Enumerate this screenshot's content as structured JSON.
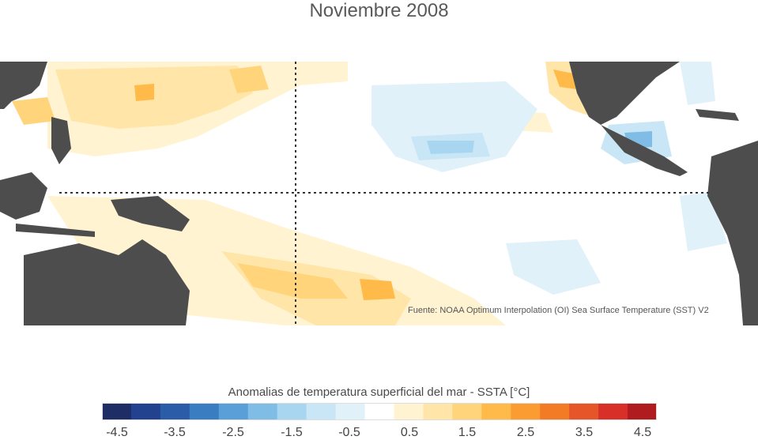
{
  "title": "Noviembre 2008",
  "source": "Fuente: NOAA Optimum Interpolation (OI) Sea Surface Temperature (SST) V2",
  "colorbar": {
    "label": "Anomalias de temperatura superficial del mar - SSTA  [°C]",
    "colors": [
      "#1f2d66",
      "#22418e",
      "#2a5ca8",
      "#3a7dc0",
      "#5a9fd8",
      "#7fbde6",
      "#a8d6f0",
      "#c8e6f5",
      "#e1f1f9",
      "#ffffff",
      "#fff3d1",
      "#ffe6a8",
      "#ffd47a",
      "#ffba4a",
      "#fb9c32",
      "#f47b26",
      "#e6552a",
      "#d83028",
      "#b01b20"
    ],
    "ticks": [
      "-4.5",
      "-3.5",
      "-2.5",
      "-1.5",
      "-0.5",
      "0.5",
      "1.5",
      "2.5",
      "3.5",
      "4.5"
    ]
  }
}
